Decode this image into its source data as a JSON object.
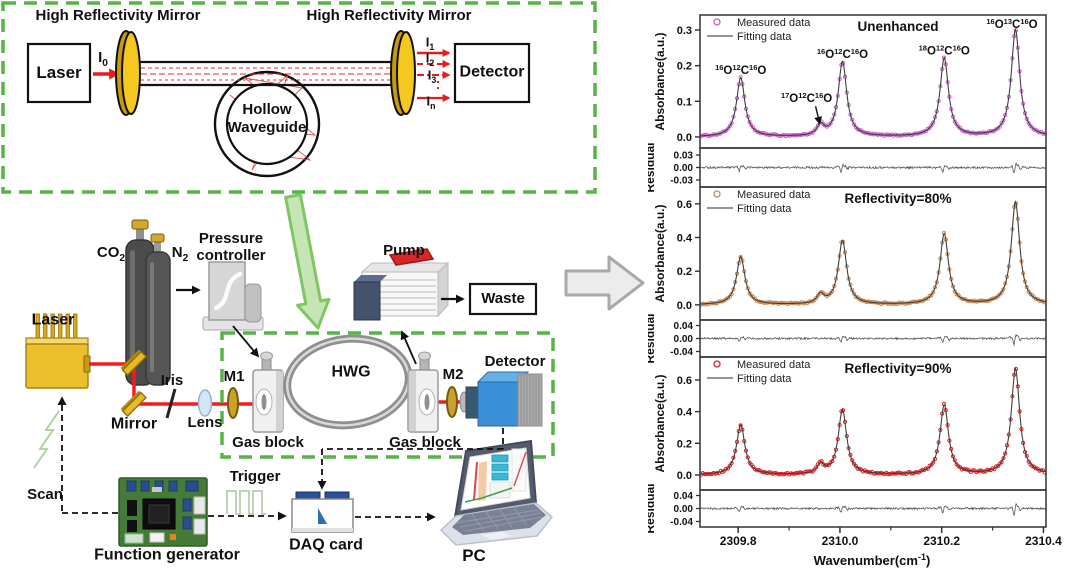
{
  "colors": {
    "green_dash": "#56b447",
    "green_arrow_fill": "#c6e5b5",
    "green_arrow_stroke": "#7fc661",
    "gray_arrow_fill": "#ececec",
    "gray_arrow_stroke": "#a9a9a9",
    "mirror_gold": "#f4c81f",
    "beam_red": "#e81c1c",
    "fit_line": "#3f3f3f"
  },
  "diagram": {
    "top_box": {
      "hr_mirror_left": "High Reflectivity Mirror",
      "hr_mirror_right": "High Reflectivity Mirror",
      "laser": "Laser",
      "detector": "Detector",
      "i0": {
        "main": "I",
        "sub": "0"
      },
      "hollow_line1": "Hollow",
      "hollow_line2": "Waveguide",
      "outputs": [
        {
          "main": "I",
          "sub": "1"
        },
        {
          "main": "I",
          "sub": "2"
        },
        {
          "main": "I",
          "sub": "3"
        },
        {
          "main": "I",
          "sub": "n"
        }
      ]
    },
    "setup": {
      "co2": {
        "main": "CO",
        "sub": "2"
      },
      "n2": {
        "main": "N",
        "sub": "2"
      },
      "pressure_line1": "Pressure",
      "pressure_line2": "controller",
      "pump": "Pump",
      "waste": "Waste",
      "laser": "Laser",
      "mirror": "Mirror",
      "iris": "Iris",
      "lens": "Lens",
      "m1": "M1",
      "m2": "M2",
      "hwg": "HWG",
      "detector": "Detector",
      "gas_block_left": "Gas block",
      "gas_block_right": "Gas block",
      "scan": "Scan",
      "trigger": "Trigger",
      "function_generator": "Function generator",
      "daq": "DAQ card",
      "pc": "PC"
    }
  },
  "chart_data": {
    "type": "line",
    "xlabel_parts": {
      "pre": "Wavenumber(cm",
      "sup": "-1",
      "post": ")"
    },
    "xlim": [
      2309.725,
      2310.405
    ],
    "xticks": [
      2309.8,
      2310.0,
      2310.2,
      2310.4
    ],
    "xtick_labels": [
      "2309.8",
      "2310.0",
      "2310.2",
      "2310.4"
    ],
    "minor_xticks": [
      2309.9,
      2310.1,
      2310.3
    ],
    "legend_position": "top-left",
    "panels": [
      {
        "title": "Unenhanced",
        "series_color": "#cc5ecb",
        "legend": [
          "Measured data",
          "Fitting data"
        ],
        "ylabel": "Absorbance(a.u.)",
        "residual_ylabel": "Residual",
        "yticks": [
          "0.0",
          "0.1",
          "0.2",
          "0.3"
        ],
        "ylim": [
          -0.031,
          0.342
        ],
        "residual_yticks": [
          "0.03",
          "0.00",
          "-0.03"
        ],
        "residual_ylim": [
          -0.047,
          0.047
        ],
        "residual_spike_amp": 0.011,
        "circle_noise": 0.002,
        "peaks": [
          {
            "center": 2309.805,
            "height": 0.165,
            "hwhm": 0.01,
            "label": [
              [
                "16",
                "O"
              ],
              [
                "12",
                "C"
              ],
              [
                "16",
                "O"
              ]
            ]
          },
          {
            "center": 2309.962,
            "height": 0.03,
            "hwhm": 0.008,
            "label": [
              [
                "17",
                "O"
              ],
              [
                "12",
                "C"
              ],
              [
                "16",
                "O"
              ]
            ],
            "arrow": true,
            "label_dx": -14,
            "label_dy": -24
          },
          {
            "center": 2310.005,
            "height": 0.21,
            "hwhm": 0.01,
            "label": [
              [
                "16",
                "O"
              ],
              [
                "12",
                "C"
              ],
              [
                "16",
                "O"
              ]
            ]
          },
          {
            "center": 2310.205,
            "height": 0.22,
            "hwhm": 0.01,
            "label": [
              [
                "18",
                "O"
              ],
              [
                "12",
                "C"
              ],
              [
                "16",
                "O"
              ]
            ]
          },
          {
            "center": 2310.345,
            "height": 0.3,
            "hwhm": 0.01,
            "label": [
              [
                "16",
                "O"
              ],
              [
                "13",
                "C"
              ],
              [
                "16",
                "O"
              ]
            ]
          }
        ]
      },
      {
        "title": "Reflectivity=80%",
        "series_color": "#c98954",
        "legend": [
          "Measured data",
          "Fitting data"
        ],
        "ylabel": "Absorbance(a.u.)",
        "residual_ylabel": "Residual",
        "yticks": [
          "0.0",
          "0.2",
          "0.4",
          "0.6"
        ],
        "ylim": [
          -0.09,
          0.7
        ],
        "residual_yticks": [
          "0.04",
          "0.00",
          "-0.04"
        ],
        "residual_ylim": [
          -0.057,
          0.057
        ],
        "residual_spike_amp": 0.015,
        "circle_noise": 0.005,
        "peaks": [
          {
            "center": 2309.805,
            "height": 0.285,
            "hwhm": 0.01
          },
          {
            "center": 2309.962,
            "height": 0.055,
            "hwhm": 0.008
          },
          {
            "center": 2310.005,
            "height": 0.38,
            "hwhm": 0.01
          },
          {
            "center": 2310.205,
            "height": 0.42,
            "hwhm": 0.01
          },
          {
            "center": 2310.345,
            "height": 0.61,
            "hwhm": 0.01
          }
        ]
      },
      {
        "title": "Reflectivity=90%",
        "series_color": "#e02525",
        "legend": [
          "Measured data",
          "Fitting data"
        ],
        "ylabel": "Absorbance(a.u.)",
        "residual_ylabel": "Residual",
        "yticks": [
          "0.0",
          "0.2",
          "0.4",
          "0.6"
        ],
        "ylim": [
          -0.095,
          0.745
        ],
        "residual_yticks": [
          "0.04",
          "0.00",
          "-0.04"
        ],
        "residual_ylim": [
          -0.057,
          0.057
        ],
        "residual_spike_amp": 0.016,
        "circle_noise": 0.006,
        "peaks": [
          {
            "center": 2309.805,
            "height": 0.315,
            "hwhm": 0.01
          },
          {
            "center": 2309.962,
            "height": 0.06,
            "hwhm": 0.008
          },
          {
            "center": 2310.005,
            "height": 0.41,
            "hwhm": 0.01
          },
          {
            "center": 2310.205,
            "height": 0.44,
            "hwhm": 0.01
          },
          {
            "center": 2310.345,
            "height": 0.67,
            "hwhm": 0.01
          }
        ]
      }
    ]
  }
}
